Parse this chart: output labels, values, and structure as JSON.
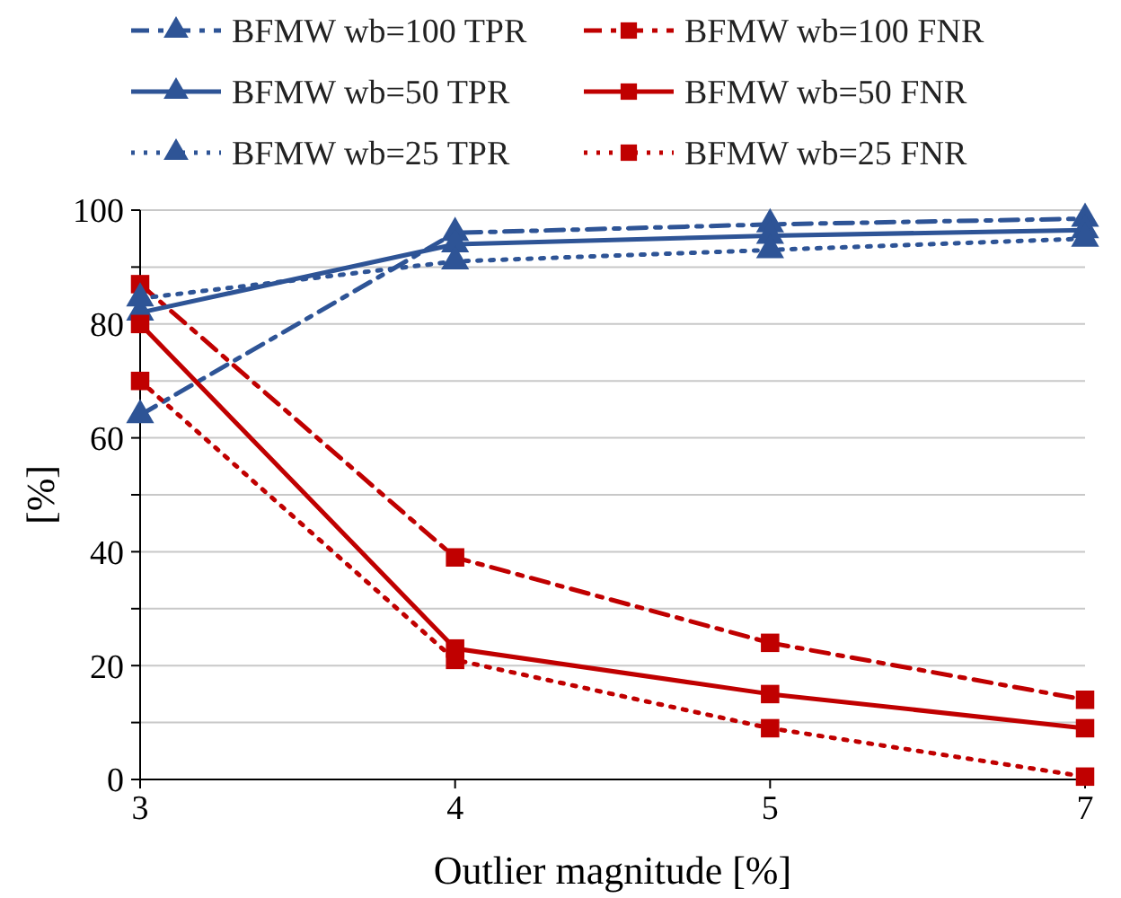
{
  "chart_data": {
    "type": "line",
    "xlabel": "Outlier magnitude [%]",
    "ylabel": "[%]",
    "categories": [
      "3",
      "4",
      "5",
      "7"
    ],
    "series": [
      {
        "name": "BFMW wb=100 TPR",
        "color": "#2e5496",
        "marker": "triangle",
        "line_style": "dashed",
        "values": [
          64,
          96,
          97.5,
          98.5
        ]
      },
      {
        "name": "BFMW wb=100 FNR",
        "color": "#c00000",
        "marker": "square",
        "line_style": "dashed",
        "values": [
          87,
          39,
          24,
          14
        ]
      },
      {
        "name": "BFMW wb=50 TPR",
        "color": "#2e5496",
        "marker": "triangle",
        "line_style": "solid",
        "values": [
          82,
          94,
          95.5,
          96.5
        ]
      },
      {
        "name": "BFMW wb=50 FNR",
        "color": "#c00000",
        "marker": "square",
        "line_style": "solid",
        "values": [
          80,
          23,
          15,
          9
        ]
      },
      {
        "name": "BFMW wb=25 TPR",
        "color": "#2e5496",
        "marker": "triangle",
        "line_style": "dotted",
        "values": [
          84.5,
          91,
          93,
          95
        ]
      },
      {
        "name": "BFMW wb=25 FNR",
        "color": "#c00000",
        "marker": "square",
        "line_style": "dotted",
        "values": [
          70,
          21,
          9,
          0.5
        ]
      }
    ],
    "ylim": [
      0,
      100
    ],
    "yticks": [
      0,
      {
        "value": 10,
        "label": null
      },
      20,
      {
        "value": 30,
        "label": null
      },
      40,
      {
        "value": 50,
        "label": null
      },
      60,
      {
        "value": 70,
        "label": null
      },
      80,
      {
        "value": 90,
        "label": null
      },
      100
    ],
    "grid": "y",
    "legend": "top"
  }
}
